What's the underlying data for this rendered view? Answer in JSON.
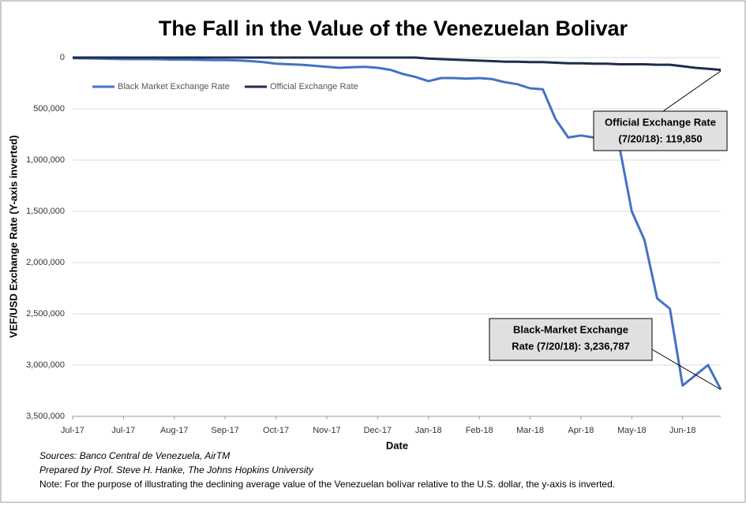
{
  "chart_data": {
    "type": "line",
    "title": "The Fall in the Value of the Venezuelan Bolivar",
    "y_label": "VEF/USD Exchange Rate (Y-axis inverted)",
    "x_label": "Date",
    "y_inverted": true,
    "grid": true,
    "legend": "top-left",
    "categories": [
      "Jul-17",
      null,
      null,
      null,
      "Jul-17",
      null,
      null,
      null,
      "Aug-17",
      null,
      null,
      null,
      "Sep-17",
      null,
      null,
      null,
      "Oct-17",
      null,
      null,
      null,
      "Nov-17",
      null,
      null,
      null,
      "Dec-17",
      null,
      null,
      null,
      "Jan-18",
      null,
      null,
      null,
      "Feb-18",
      null,
      null,
      null,
      "Mar-18",
      null,
      null,
      null,
      "Apr-18",
      null,
      null,
      null,
      "May-18",
      null,
      null,
      null,
      "Jun-18",
      null,
      null,
      null
    ],
    "series": [
      {
        "name": "Black Market Exchange Rate",
        "color": "#4472c4",
        "values": [
          5000,
          8000,
          10000,
          12000,
          15000,
          15000,
          15000,
          18000,
          20000,
          20000,
          22000,
          25000,
          25000,
          28000,
          35000,
          45000,
          60000,
          65000,
          70000,
          80000,
          90000,
          100000,
          95000,
          90000,
          100000,
          120000,
          160000,
          190000,
          230000,
          200000,
          200000,
          205000,
          200000,
          210000,
          240000,
          260000,
          300000,
          310000,
          600000,
          780000,
          760000,
          780000,
          770000,
          850000,
          1500000,
          1780000,
          2350000,
          2450000,
          3200000,
          3100000,
          3000000,
          3236787
        ]
      },
      {
        "name": "Official Exchange Rate",
        "color": "#1f2d50",
        "values": [
          0,
          0,
          0,
          0,
          0,
          0,
          0,
          0,
          0,
          0,
          0,
          0,
          0,
          0,
          0,
          0,
          0,
          0,
          0,
          0,
          0,
          0,
          0,
          0,
          0,
          0,
          0,
          0,
          10000,
          15000,
          20000,
          25000,
          30000,
          35000,
          40000,
          40000,
          45000,
          45000,
          50000,
          55000,
          55000,
          60000,
          60000,
          65000,
          65000,
          65000,
          70000,
          70000,
          85000,
          100000,
          110000,
          119850
        ]
      }
    ],
    "ylim": [
      0,
      3500000
    ],
    "yticks": [
      0,
      {
        "value": 500000,
        "label": "500,000"
      },
      {
        "value": 1000000,
        "label": "1,000,000"
      },
      {
        "value": 1500000,
        "label": "1,500,000"
      },
      {
        "value": 2000000,
        "label": "2,000,000"
      },
      {
        "value": 2500000,
        "label": "2,500,000"
      },
      {
        "value": 3000000,
        "label": "3,000,000"
      },
      {
        "value": 3500000,
        "label": "3,500,000"
      }
    ],
    "annotations": [
      {
        "lines": [
          "Official Exchange Rate",
          "(7/20/18): 119,850"
        ]
      },
      {
        "lines": [
          "Black-Market Exchange",
          "Rate (7/20/18): 3,236,787"
        ]
      }
    ],
    "notes": [
      "Sources: Banco Central de Venezuela, AirTM",
      "Prepared by Prof. Steve H. Hanke, The Johns Hopkins University",
      "Note: For the purpose of illustrating the declining average value of the Venezuelan bolívar relative to the U.S. dollar, the y-axis is inverted."
    ]
  }
}
